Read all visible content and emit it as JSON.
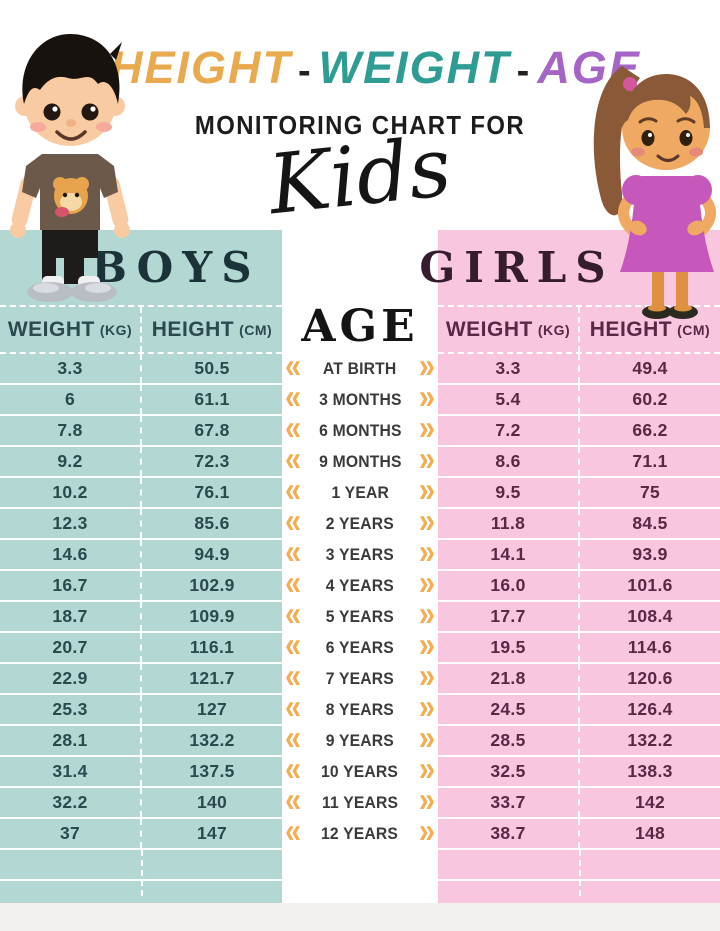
{
  "page": {
    "title_word_1": "HEIGHT",
    "title_word_2": "WEIGHT",
    "title_word_3": "AGE",
    "title_separator": "-",
    "subtitle": "MONITORING CHART FOR",
    "script_word": "Kids"
  },
  "boys_table": {
    "title": "BOYS",
    "weight_header": "WEIGHT",
    "weight_unit": "(KG)",
    "height_header": "HEIGHT",
    "height_unit": "(CM)",
    "rows": [
      [
        "3.3",
        "50.5"
      ],
      [
        "6",
        "61.1"
      ],
      [
        "7.8",
        "67.8"
      ],
      [
        "9.2",
        "72.3"
      ],
      [
        "10.2",
        "76.1"
      ],
      [
        "12.3",
        "85.6"
      ],
      [
        "14.6",
        "94.9"
      ],
      [
        "16.7",
        "102.9"
      ],
      [
        "18.7",
        "109.9"
      ],
      [
        "20.7",
        "116.1"
      ],
      [
        "22.9",
        "121.7"
      ],
      [
        "25.3",
        "127"
      ],
      [
        "28.1",
        "132.2"
      ],
      [
        "31.4",
        "137.5"
      ],
      [
        "32.2",
        "140"
      ],
      [
        "37",
        "147"
      ]
    ]
  },
  "girls_table": {
    "title": "GIRLS",
    "weight_header": "WEIGHT",
    "weight_unit": "(KG)",
    "height_header": "HEIGHT",
    "height_unit": "(CM)",
    "rows": [
      [
        "3.3",
        "49.4"
      ],
      [
        "5.4",
        "60.2"
      ],
      [
        "7.2",
        "66.2"
      ],
      [
        "8.6",
        "71.1"
      ],
      [
        "9.5",
        "75"
      ],
      [
        "11.8",
        "84.5"
      ],
      [
        "14.1",
        "93.9"
      ],
      [
        "16.0",
        "101.6"
      ],
      [
        "17.7",
        "108.4"
      ],
      [
        "19.5",
        "114.6"
      ],
      [
        "21.8",
        "120.6"
      ],
      [
        "24.5",
        "126.4"
      ],
      [
        "28.5",
        "132.2"
      ],
      [
        "32.5",
        "138.3"
      ],
      [
        "33.7",
        "142"
      ],
      [
        "38.7",
        "148"
      ]
    ]
  },
  "age_column": {
    "title": "AGE",
    "labels": [
      "AT BIRTH",
      "3 MONTHS",
      "6 MONTHS",
      "9 MONTHS",
      "1 YEAR",
      "2 YEARS",
      "3 YEARS",
      "4 YEARS",
      "5 YEARS",
      "6 YEARS",
      "7 YEARS",
      "8 YEARS",
      "9 YEARS",
      "10 YEARS",
      "11 YEARS",
      "12 YEARS"
    ]
  },
  "icons": {
    "chevrons_left": "«",
    "chevrons_right": "»"
  },
  "colors": {
    "boys_bg": "#b3d7d3",
    "girls_bg": "#f8c6de",
    "boys_text": "#2a4a4e",
    "girls_text": "#5a2745",
    "chevron_orange": "#f2ae52",
    "title_height": "#e9a94e",
    "title_weight": "#2f9c94",
    "title_age": "#a465c6"
  },
  "chart_data": {
    "type": "table",
    "title": "HEIGHT - WEIGHT - AGE MONITORING CHART FOR Kids",
    "categories": [
      "AT BIRTH",
      "3 MONTHS",
      "6 MONTHS",
      "9 MONTHS",
      "1 YEAR",
      "2 YEARS",
      "3 YEARS",
      "4 YEARS",
      "5 YEARS",
      "6 YEARS",
      "7 YEARS",
      "8 YEARS",
      "9 YEARS",
      "10 YEARS",
      "11 YEARS",
      "12 YEARS"
    ],
    "series": [
      {
        "name": "Boys Weight (kg)",
        "values": [
          3.3,
          6,
          7.8,
          9.2,
          10.2,
          12.3,
          14.6,
          16.7,
          18.7,
          20.7,
          22.9,
          25.3,
          28.1,
          31.4,
          32.2,
          37
        ]
      },
      {
        "name": "Boys Height (cm)",
        "values": [
          50.5,
          61.1,
          67.8,
          72.3,
          76.1,
          85.6,
          94.9,
          102.9,
          109.9,
          116.1,
          121.7,
          127,
          132.2,
          137.5,
          140,
          147
        ]
      },
      {
        "name": "Girls Weight (kg)",
        "values": [
          3.3,
          5.4,
          7.2,
          8.6,
          9.5,
          11.8,
          14.1,
          16.0,
          17.7,
          19.5,
          21.8,
          24.5,
          28.5,
          32.5,
          33.7,
          38.7
        ]
      },
      {
        "name": "Girls Height (cm)",
        "values": [
          49.4,
          60.2,
          66.2,
          71.1,
          75,
          84.5,
          93.9,
          101.6,
          108.4,
          114.6,
          120.6,
          126.4,
          132.2,
          138.3,
          142,
          148
        ]
      }
    ]
  }
}
